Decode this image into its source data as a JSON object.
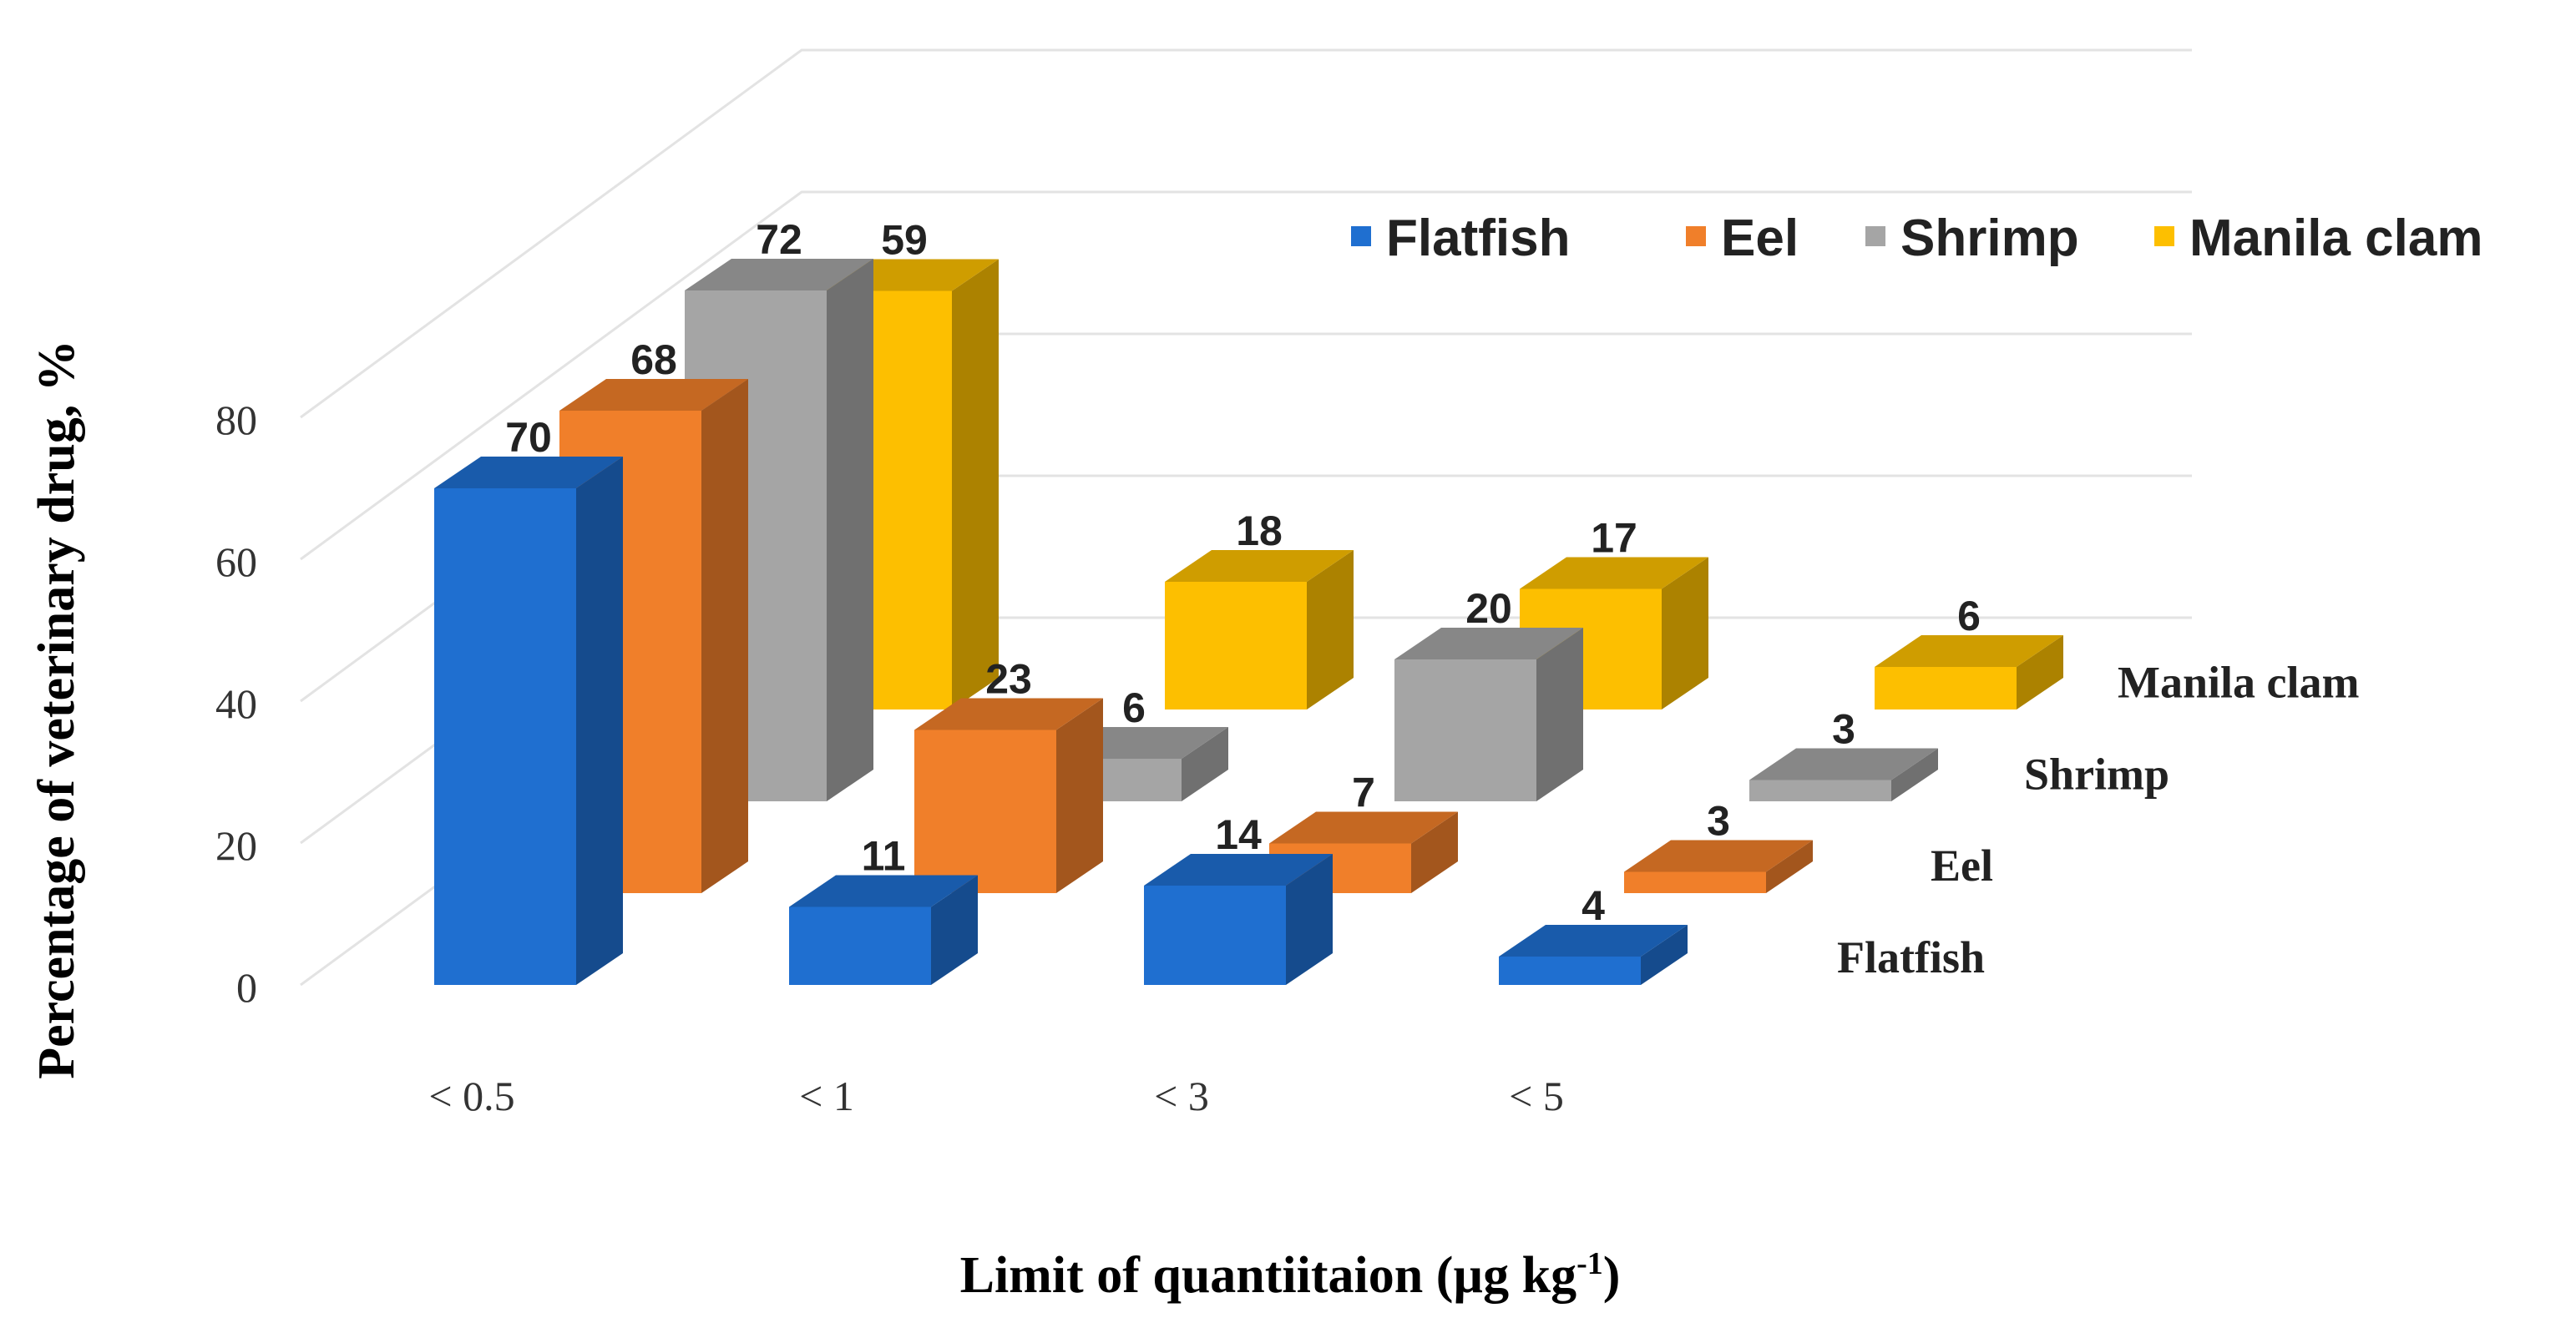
{
  "chart_data": {
    "type": "bar",
    "subtype": "3d-column",
    "categories": [
      "< 0.5",
      "< 1",
      "< 3",
      "< 5"
    ],
    "series": [
      {
        "name": "Flatfish",
        "color": "#1f6fd0",
        "values": [
          70,
          11,
          14,
          4
        ]
      },
      {
        "name": "Eel",
        "color": "#f07f2a",
        "values": [
          68,
          23,
          7,
          3
        ]
      },
      {
        "name": "Shrimp",
        "color": "#a5a5a5",
        "values": [
          72,
          6,
          20,
          3
        ]
      },
      {
        "name": "Manila clam",
        "color": "#fdbf00",
        "values": [
          59,
          18,
          17,
          6
        ]
      }
    ],
    "depth_labels": [
      "Flatfish",
      "Eel",
      "Shrimp",
      "Manila clam"
    ],
    "y_ticks": [
      "0",
      "20",
      "40",
      "60",
      "80"
    ],
    "ylim": [
      0,
      80
    ],
    "ylabel": "Percentage of veterinary drug, %",
    "xlabel_main": "Limit of quantiitaion (µg kg",
    "xlabel_sup": "-1",
    "xlabel_tail": ")",
    "legend_position": "top-right",
    "grid": true
  }
}
